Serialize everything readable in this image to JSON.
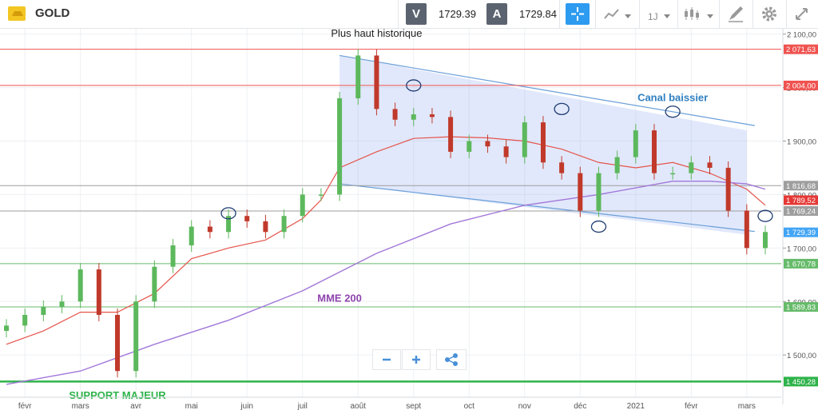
{
  "toolbar": {
    "symbol": "GOLD",
    "sell_label": "V",
    "sell_price": "1729.39",
    "buy_label": "A",
    "buy_price": "1729.84",
    "timeframe": "1J",
    "icons": [
      "gold-bar-icon",
      "crosshair-icon",
      "chart-type-icon",
      "timeframe-icon",
      "candles-icon",
      "drawing-icon",
      "gear-icon",
      "fullscreen-icon"
    ]
  },
  "zoom_controls": {
    "minus": "−",
    "plus": "+",
    "icons": [
      "zoom-out-icon",
      "zoom-in-icon",
      "share-icon"
    ]
  },
  "chart_data": {
    "type": "line",
    "instrument": "GOLD",
    "candle_closes_approx": [
      [
        0,
        1555
      ],
      [
        1,
        1575
      ],
      [
        2,
        1590
      ],
      [
        3,
        1600
      ],
      [
        4,
        1660
      ],
      [
        5,
        1575
      ],
      [
        6,
        1470
      ],
      [
        7,
        1600
      ],
      [
        8,
        1665
      ],
      [
        9,
        1705
      ],
      [
        10,
        1740
      ],
      [
        11,
        1730
      ],
      [
        12,
        1760
      ],
      [
        13,
        1750
      ],
      [
        14,
        1730
      ],
      [
        15,
        1760
      ],
      [
        16,
        1800
      ],
      [
        17,
        1800
      ],
      [
        18,
        1980
      ],
      [
        19,
        2060
      ],
      [
        20,
        1960
      ],
      [
        21,
        1940
      ],
      [
        22,
        1950
      ],
      [
        23,
        1945
      ],
      [
        24,
        1880
      ],
      [
        25,
        1900
      ],
      [
        26,
        1890
      ],
      [
        27,
        1870
      ],
      [
        28,
        1935
      ],
      [
        29,
        1860
      ],
      [
        30,
        1840
      ],
      [
        31,
        1770
      ],
      [
        32,
        1840
      ],
      [
        33,
        1870
      ],
      [
        34,
        1920
      ],
      [
        35,
        1840
      ],
      [
        36,
        1840
      ],
      [
        37,
        1860
      ],
      [
        38,
        1850
      ],
      [
        39,
        1770
      ],
      [
        40,
        1700
      ],
      [
        41,
        1730
      ]
    ],
    "ema_short": [
      [
        0,
        1520
      ],
      [
        2,
        1545
      ],
      [
        4,
        1580
      ],
      [
        6,
        1580
      ],
      [
        8,
        1615
      ],
      [
        10,
        1680
      ],
      [
        12,
        1700
      ],
      [
        14,
        1715
      ],
      [
        16,
        1755
      ],
      [
        17,
        1790
      ],
      [
        18,
        1850
      ],
      [
        20,
        1880
      ],
      [
        22,
        1905
      ],
      [
        24,
        1908
      ],
      [
        26,
        1906
      ],
      [
        28,
        1900
      ],
      [
        30,
        1885
      ],
      [
        32,
        1860
      ],
      [
        34,
        1850
      ],
      [
        36,
        1860
      ],
      [
        38,
        1840
      ],
      [
        40,
        1810
      ],
      [
        41,
        1780
      ]
    ],
    "ema_200": [
      [
        0,
        1445
      ],
      [
        4,
        1470
      ],
      [
        8,
        1520
      ],
      [
        12,
        1565
      ],
      [
        16,
        1620
      ],
      [
        20,
        1690
      ],
      [
        24,
        1745
      ],
      [
        28,
        1780
      ],
      [
        32,
        1800
      ],
      [
        36,
        1825
      ],
      [
        38,
        1825
      ],
      [
        40,
        1820
      ],
      [
        41,
        1810
      ]
    ],
    "channel": {
      "upper": [
        [
          18,
          2060
        ],
        [
          40,
          1920
        ]
      ],
      "lower": [
        [
          18,
          1820
        ],
        [
          40,
          1725
        ]
      ]
    },
    "horizontal_levels": [
      {
        "value": 2071.63,
        "label": "2 071,63",
        "color": "#ef5350"
      },
      {
        "value": 2004.0,
        "label": "2 004,00",
        "color": "#ef5350"
      },
      {
        "value": 1816.68,
        "label": "1 816,68",
        "color": "#9e9e9e"
      },
      {
        "value": 1769.24,
        "label": "1 769,24",
        "color": "#9e9e9e"
      },
      {
        "value": 1670.78,
        "label": "1 670,78",
        "color": "#66bb6a"
      },
      {
        "value": 1589.83,
        "label": "1 589,83",
        "color": "#66bb6a"
      },
      {
        "value": 1450.28,
        "label": "1 450,28",
        "color": "#2eb34a"
      }
    ],
    "price_tags": [
      {
        "value": 1789.52,
        "label": "1 789,52",
        "color": "#e53935"
      },
      {
        "value": 1729.39,
        "label": "1 729,39",
        "color": "#42a5f5"
      }
    ],
    "y_ticks": [
      {
        "value": 2100,
        "label": "2 100,00"
      },
      {
        "value": 2000,
        "label": "2 000,00"
      },
      {
        "value": 1900,
        "label": "1 900,00"
      },
      {
        "value": 1800,
        "label": "1 800,00"
      },
      {
        "value": 1700,
        "label": "1 700,00"
      },
      {
        "value": 1600,
        "label": "1 600,00"
      },
      {
        "value": 1500,
        "label": "1 500,00"
      }
    ],
    "x_ticks": [
      {
        "i": 1,
        "label": "févr"
      },
      {
        "i": 4,
        "label": "mars"
      },
      {
        "i": 7,
        "label": "avr"
      },
      {
        "i": 10,
        "label": "mai"
      },
      {
        "i": 13,
        "label": "juin"
      },
      {
        "i": 16,
        "label": "juil"
      },
      {
        "i": 19,
        "label": "août"
      },
      {
        "i": 22,
        "label": "sept"
      },
      {
        "i": 25,
        "label": "oct"
      },
      {
        "i": 28,
        "label": "nov"
      },
      {
        "i": 31,
        "label": "déc"
      },
      {
        "i": 34,
        "label": "2021"
      },
      {
        "i": 37,
        "label": "févr"
      },
      {
        "i": 40,
        "label": "mars"
      }
    ],
    "y_range": [
      1430,
      2110
    ],
    "annotations": [
      {
        "text": "Plus haut historique",
        "i": 20,
        "value": 2095,
        "color": "#222222"
      },
      {
        "text": "Canal baissier",
        "i": 36,
        "value": 1975,
        "color": "#2f7fc1"
      },
      {
        "text": "MME 200",
        "i": 18,
        "value": 1600,
        "color": "#8e44ad"
      },
      {
        "text": "SUPPORT MAJEUR",
        "i": 6,
        "value": 1418,
        "color": "#2eb34a"
      }
    ],
    "circled_points": [
      [
        12,
        1765
      ],
      [
        22,
        2004
      ],
      [
        30,
        1960
      ],
      [
        36,
        1955
      ],
      [
        32,
        1740
      ],
      [
        41,
        1760
      ]
    ]
  }
}
